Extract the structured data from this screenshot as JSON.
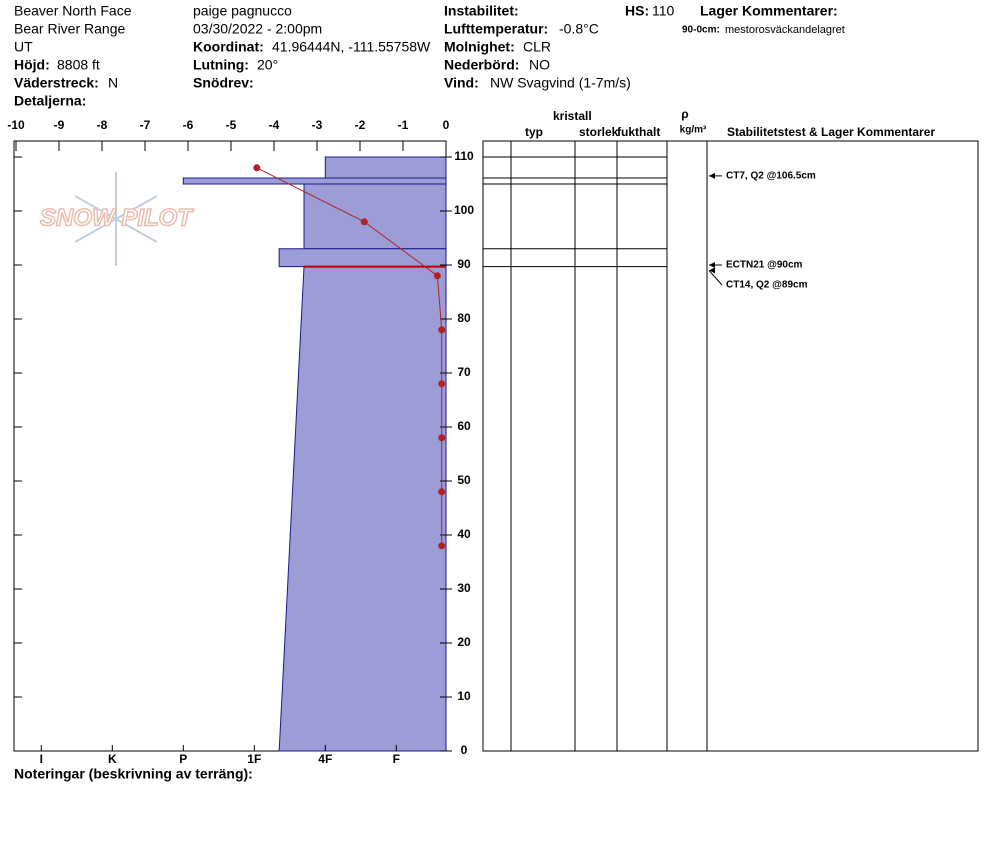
{
  "header": {
    "location": "Beaver North Face",
    "range": "Bear River Range",
    "state": "UT",
    "elevation_label": "Höjd:",
    "elevation": "8808 ft",
    "aspect_label": "Väderstreck:",
    "aspect": "N",
    "details_label": "Detaljerna:",
    "observer": "paige pagnucco",
    "datetime": "03/30/2022 - 2:00pm",
    "coord_label": "Koordinat:",
    "coord": "41.96444N, -111.55758W",
    "slope_label": "Lutning:",
    "slope": "20°",
    "drift_label": "Snödrev:",
    "instab_label": "Instabilitet:",
    "airtemp_label": "Lufttemperatur:",
    "airtemp": "-0.8°C",
    "sky_label": "Molnighet:",
    "sky": "CLR",
    "precip_label": "Nederbörd:",
    "precip": "NO",
    "wind_label": "Vind:",
    "wind": "NW Svagvind (1-7m/s)",
    "hs_label": "HS:",
    "hs": "110",
    "layer_comments_label": "Lager Kommentarer:",
    "layer_comment_range": "90-0cm:",
    "layer_comment": "mestorosväckandelagret"
  },
  "logo": "SNOW PILOT",
  "columns": {
    "type": "typ",
    "crystal": "kristall",
    "size": "storlek",
    "moisture": "fukthalt",
    "rho": "ρ",
    "density_unit": "kg/m³",
    "stability": "Stabilitetstest & Lager Kommentarer"
  },
  "footer": "Noteringar (beskrivning av terräng):",
  "profile": {
    "temp_ticks": [
      -10,
      -9,
      -8,
      -7,
      -6,
      -5,
      -4,
      -3,
      -2,
      -1,
      0
    ],
    "depth_ticks": [
      0,
      10,
      20,
      30,
      40,
      50,
      60,
      70,
      80,
      90,
      100,
      110
    ],
    "hardness_ticks": [
      {
        "value": 6,
        "label": "I"
      },
      {
        "value": 5,
        "label": "K"
      },
      {
        "value": 4,
        "label": "P"
      },
      {
        "value": 3,
        "label": "1F"
      },
      {
        "value": 2,
        "label": "4F"
      },
      {
        "value": 1,
        "label": "F"
      }
    ],
    "layers": [
      {
        "top": 110,
        "bottom": 106.1,
        "hardness_top": 2.0,
        "hardness_bottom": 2.0
      },
      {
        "top": 106.1,
        "bottom": 105,
        "hardness_top": 4.0,
        "hardness_bottom": 4.0
      },
      {
        "top": 105,
        "bottom": 93,
        "hardness_top": 2.3,
        "hardness_bottom": 2.3
      },
      {
        "top": 93,
        "bottom": 89.7,
        "hardness_top": 2.65,
        "hardness_bottom": 2.65
      },
      {
        "top": 89.7,
        "bottom": 0,
        "hardness_top": 2.3,
        "hardness_bottom": 2.65
      }
    ],
    "critical_depth": 89.7,
    "temp_depths": [
      108,
      98,
      88,
      78,
      68,
      58,
      48,
      38
    ],
    "temps": [
      -4.4,
      -1.9,
      -0.2,
      -0.1,
      -0.1,
      -0.1,
      -0.1,
      -0.1
    ],
    "tests": [
      {
        "depth": 106.5,
        "label": "CT7, Q2 @106.5cm"
      },
      {
        "depth": 90,
        "label": "ECTN21 @90cm"
      },
      {
        "depth": 89,
        "label": "CT14, Q2 @89cm"
      }
    ]
  }
}
